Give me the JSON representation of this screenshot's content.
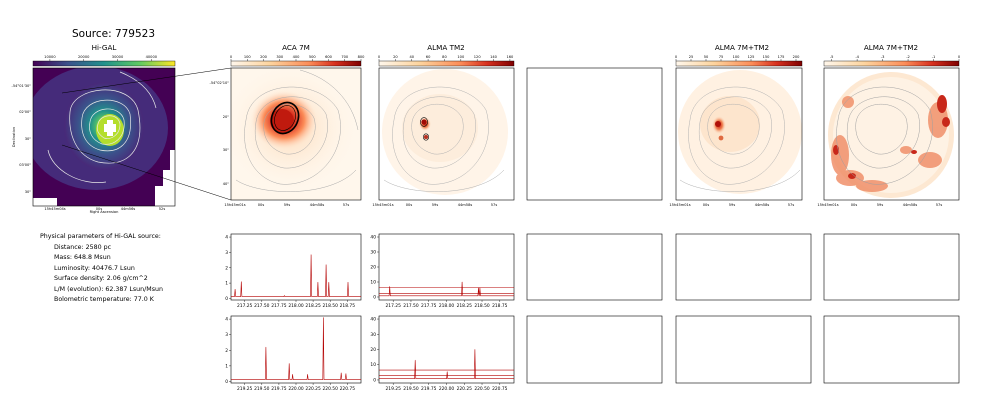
{
  "source_title": "Source: 779523",
  "panel_titles": [
    "Hi-GAL",
    "ACA 7M",
    "ALMA TM2",
    "ALMA 7M+TM2",
    "ALMA 7M+TM2"
  ],
  "info": {
    "heading": "Physical parameters of Hi-GAL source:",
    "lines": [
      "Distance: 2580 pc",
      "Mass: 648.8 Msun",
      "Luminosity: 40476.7 Lsun",
      "Surface density: 2.06 g/cm^2",
      "L/M (evolution): 62.387 Lsun/Msun",
      "Bolometric temperature: 77.0 K"
    ]
  },
  "axes_text": {
    "xlabel": "Right Ascension",
    "ylabel": "Declination",
    "ra_ticks_higal": [
      "15h45m04s",
      "00s",
      "44m56s",
      "52s"
    ],
    "dec_ticks_higal": [
      "-54°01'30\"",
      "02'00\"",
      "30\"",
      "03'00\"",
      "30\""
    ],
    "ra_ticks_zoom": [
      "15h45m01s",
      "00s",
      "59s",
      "44m58s",
      "57s"
    ],
    "dec_ticks_zoom": [
      "-54°02'10\"",
      "20\"",
      "30\"",
      "40\""
    ]
  },
  "colors": {
    "viridis": [
      "#440154",
      "#3b528b",
      "#21918c",
      "#5ec962",
      "#fde725"
    ],
    "orrd": [
      "#fff7ec",
      "#fdd49e",
      "#fc8d59",
      "#d7301f",
      "#7f0000"
    ],
    "spectrum_line": "#b40000",
    "contour": "#9a9a9a"
  },
  "chart_data": [
    {
      "type": "heatmap",
      "title": "Hi-GAL",
      "colorbar_ticks": [
        "10000",
        "20000",
        "30000",
        "40000"
      ],
      "colorbar_range": [
        5000,
        47000
      ]
    },
    {
      "type": "heatmap",
      "title": "ACA 7M",
      "colorbar_ticks": [
        "0",
        "100",
        "200",
        "300",
        "400",
        "500",
        "600",
        "700",
        "800"
      ],
      "colorbar_range": [
        0,
        800
      ]
    },
    {
      "type": "heatmap",
      "title": "ALMA TM2",
      "colorbar_ticks": [
        "0",
        "20",
        "40",
        "60",
        "80",
        "100",
        "120",
        "140",
        "160"
      ],
      "colorbar_range": [
        0,
        165
      ]
    },
    {
      "type": "heatmap",
      "title": "ALMA 7M+TM2",
      "colorbar_ticks": [
        "0",
        "25",
        "50",
        "75",
        "100",
        "125",
        "150",
        "175",
        "200"
      ],
      "colorbar_range": [
        0,
        210
      ]
    },
    {
      "type": "heatmap",
      "title": "ALMA 7M+TM2",
      "colorbar_ticks": [
        "-5",
        "-4",
        "-3",
        "-2",
        "-1",
        "0"
      ],
      "colorbar_range": [
        -5.3,
        0
      ]
    },
    {
      "type": "line",
      "panel": "spectrum ACA 7M band 1",
      "x_ticks": [
        "217.25",
        "217.50",
        "217.75",
        "218.00",
        "218.25",
        "218.50",
        "218.75"
      ],
      "y_ticks": [
        "0",
        "1",
        "2",
        "3",
        "4"
      ],
      "xlim": [
        217.05,
        218.95
      ],
      "ylim": [
        -0.1,
        4.2
      ],
      "baseline": 0.12,
      "peaks": [
        {
          "x": 217.11,
          "y": 0.6
        },
        {
          "x": 217.2,
          "y": 1.1
        },
        {
          "x": 217.83,
          "y": 0.18
        },
        {
          "x": 218.22,
          "y": 2.85
        },
        {
          "x": 218.32,
          "y": 1.05
        },
        {
          "x": 218.44,
          "y": 2.2
        },
        {
          "x": 218.48,
          "y": 1.05
        },
        {
          "x": 218.76,
          "y": 1.05
        }
      ]
    },
    {
      "type": "line",
      "panel": "spectrum ALMA TM2 band 1",
      "x_ticks": [
        "217.25",
        "217.50",
        "217.75",
        "218.00",
        "218.25",
        "218.50",
        "218.75"
      ],
      "y_ticks": [
        "0",
        "10",
        "20",
        "30",
        "40"
      ],
      "xlim": [
        217.05,
        218.95
      ],
      "ylim": [
        -2,
        42
      ],
      "baseline": 0.8,
      "hlines": [
        2.4,
        6.5
      ],
      "peaks": [
        {
          "x": 217.2,
          "y": 7.0
        },
        {
          "x": 218.22,
          "y": 10.0
        },
        {
          "x": 218.45,
          "y": 6.0
        },
        {
          "x": 218.47,
          "y": 6.0
        }
      ]
    },
    {
      "type": "line",
      "panel": "spectrum ACA 7M band 2",
      "x_ticks": [
        "219.25",
        "219.50",
        "219.75",
        "220.00",
        "220.25",
        "220.50",
        "220.75"
      ],
      "y_ticks": [
        "0",
        "1",
        "2",
        "3",
        "4"
      ],
      "xlim": [
        219.05,
        220.95
      ],
      "ylim": [
        -0.1,
        4.2
      ],
      "baseline": 0.12,
      "peaks": [
        {
          "x": 219.56,
          "y": 2.2
        },
        {
          "x": 219.9,
          "y": 1.15
        },
        {
          "x": 219.95,
          "y": 0.45
        },
        {
          "x": 220.17,
          "y": 0.45
        },
        {
          "x": 220.4,
          "y": 4.1
        },
        {
          "x": 220.66,
          "y": 0.55
        },
        {
          "x": 220.73,
          "y": 0.5
        }
      ]
    },
    {
      "type": "line",
      "panel": "spectrum ALMA TM2 band 2",
      "x_ticks": [
        "219.25",
        "219.50",
        "219.75",
        "220.00",
        "220.25",
        "220.50",
        "220.75"
      ],
      "y_ticks": [
        "0",
        "10",
        "20",
        "30",
        "40"
      ],
      "xlim": [
        219.05,
        220.95
      ],
      "ylim": [
        -2,
        42
      ],
      "baseline": 0.8,
      "hlines": [
        2.8,
        6.5
      ],
      "peaks": [
        {
          "x": 219.56,
          "y": 13.0
        },
        {
          "x": 220.01,
          "y": 5.5
        },
        {
          "x": 220.4,
          "y": 20.0
        }
      ]
    }
  ]
}
